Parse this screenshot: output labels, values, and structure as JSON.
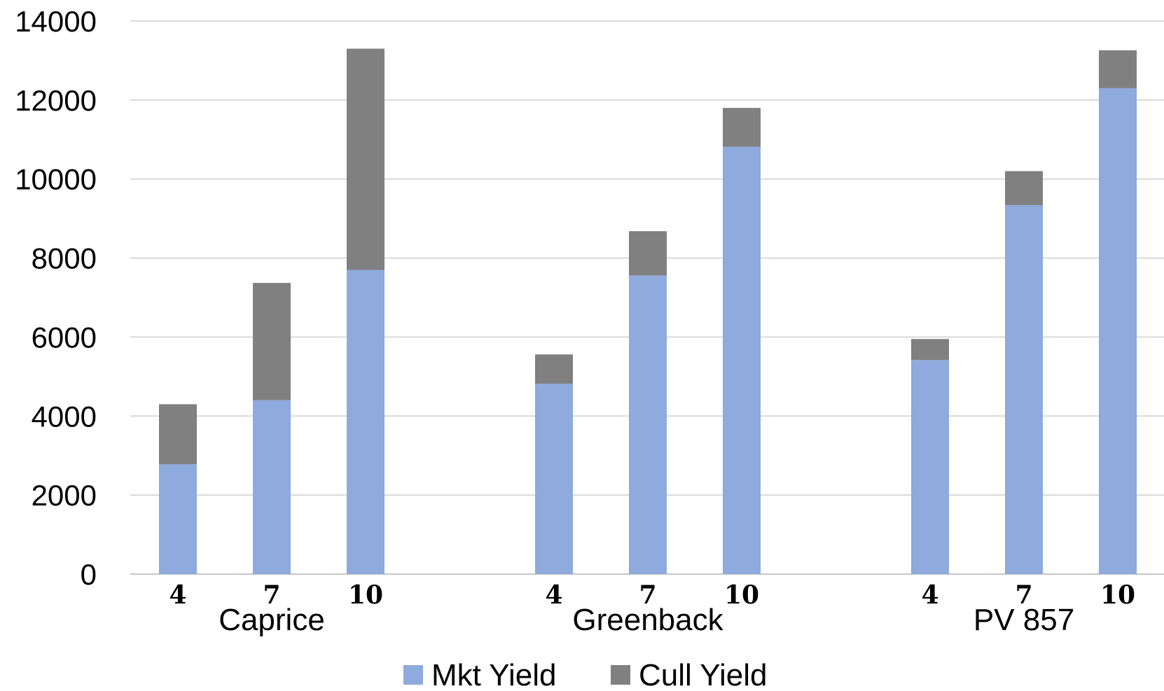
{
  "chart_data": {
    "type": "bar",
    "stacked": true,
    "title": "",
    "xlabel": "",
    "ylabel": "",
    "ylim": [
      0,
      14000
    ],
    "yticks": [
      0,
      2000,
      4000,
      6000,
      8000,
      10000,
      12000,
      14000
    ],
    "grid": true,
    "groups": [
      {
        "label": "Caprice",
        "categories": [
          "4",
          "7",
          "10"
        ]
      },
      {
        "label": "Greenback",
        "categories": [
          "4",
          "7",
          "10"
        ]
      },
      {
        "label": "PV 857",
        "categories": [
          "4",
          "7",
          "10"
        ]
      }
    ],
    "series": [
      {
        "name": "Mkt Yield",
        "color": "#8FAADC",
        "values": [
          2780,
          4400,
          7700,
          4820,
          7560,
          10820,
          5420,
          9340,
          12300
        ]
      },
      {
        "name": "Cull Yield",
        "color": "#808080",
        "values": [
          1520,
          2970,
          5600,
          740,
          1120,
          980,
          530,
          860,
          960
        ]
      }
    ],
    "legend": {
      "position": "bottom"
    }
  }
}
